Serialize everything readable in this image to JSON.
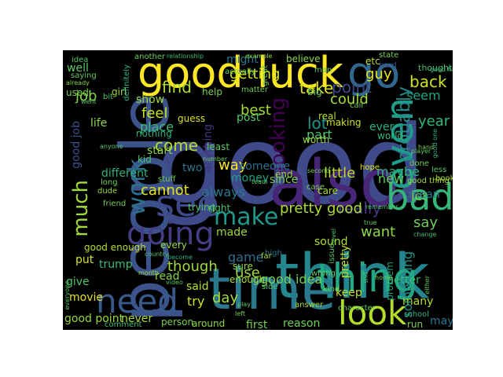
{
  "wordcloud": {
    "words": [
      {
        "text": "good",
        "color": "#3e4a89"
      },
      {
        "text": "people",
        "color": "#3b528b"
      },
      {
        "text": "think",
        "color": "#24868e"
      },
      {
        "text": "time",
        "color": "#2a788e"
      },
      {
        "text": "also",
        "color": "#482677"
      },
      {
        "text": "good luck",
        "color": "#fde725"
      },
      {
        "text": "go",
        "color": "#31688e"
      },
      {
        "text": "even",
        "color": "#1f9e89"
      },
      {
        "text": "bad",
        "color": "#35b779"
      },
      {
        "text": "thing",
        "color": "#22a884"
      },
      {
        "text": "need",
        "color": "#38598c"
      },
      {
        "text": "see",
        "color": "#3e4989"
      },
      {
        "text": "look",
        "color": "#b5de2b"
      },
      {
        "text": "make",
        "color": "#1f988b"
      },
      {
        "text": "going",
        "color": "#433e85"
      },
      {
        "text": "work",
        "color": "#2d708e"
      },
      {
        "text": "much",
        "color": "#a0da39"
      },
      {
        "text": "probably",
        "color": "#238a8d"
      },
      {
        "text": "really",
        "color": "#453781"
      },
      {
        "text": "point",
        "color": "#3e4a89"
      },
      {
        "text": "back",
        "color": "#cde11d"
      },
      {
        "text": "getting",
        "color": "#d8e219"
      },
      {
        "text": "take",
        "color": "#dde318"
      },
      {
        "text": "find",
        "color": "#addc30"
      },
      {
        "text": "looking",
        "color": "#440154"
      },
      {
        "text": "pretty good",
        "color": "#addc30"
      },
      {
        "text": "lot",
        "color": "#1f968b"
      },
      {
        "text": "come",
        "color": "#b5de2b"
      },
      {
        "text": "feel",
        "color": "#c8e020"
      },
      {
        "text": "might",
        "color": "#2a788e"
      },
      {
        "text": "year",
        "color": "#35b779"
      },
      {
        "text": "could",
        "color": "#a5db36"
      },
      {
        "text": "job",
        "color": "#86d549"
      },
      {
        "text": "good job",
        "color": "#3b528b"
      },
      {
        "text": "life",
        "color": "#8bd646"
      },
      {
        "text": "show",
        "color": "#9bd93c"
      },
      {
        "text": "place",
        "color": "#3fbc73"
      },
      {
        "text": "start",
        "color": "#8bd646"
      },
      {
        "text": "cannot",
        "color": "#e5e419"
      },
      {
        "text": "always",
        "color": "#2a788e"
      },
      {
        "text": "way",
        "color": "#fde725"
      },
      {
        "text": "though",
        "color": "#a2da37"
      },
      {
        "text": "made",
        "color": "#9bd93c"
      },
      {
        "text": "want",
        "color": "#8fd744"
      },
      {
        "text": "say",
        "color": "#6ece58"
      },
      {
        "text": "let",
        "color": "#7ad151"
      },
      {
        "text": "seem",
        "color": "#20a386"
      },
      {
        "text": "guy",
        "color": "#e5e419"
      },
      {
        "text": "new",
        "color": "#65cb5e"
      },
      {
        "text": "maybe",
        "color": "#31b57b"
      },
      {
        "text": "little",
        "color": "#b5de2b"
      },
      {
        "text": "someone",
        "color": "#2c728e"
      },
      {
        "text": "money",
        "color": "#1fa188"
      },
      {
        "text": "best",
        "color": "#a5db36"
      },
      {
        "text": "post",
        "color": "#54c568"
      },
      {
        "text": "part",
        "color": "#4ac16d"
      },
      {
        "text": "ever",
        "color": "#2db27d"
      },
      {
        "text": "use",
        "color": "#9dd93b"
      },
      {
        "text": "game",
        "color": "#2e6f8e"
      },
      {
        "text": "good idea",
        "color": "#74d055"
      },
      {
        "text": "day",
        "color": "#a8db34"
      },
      {
        "text": "try",
        "color": "#d0e11c"
      },
      {
        "text": "read",
        "color": "#86d549"
      },
      {
        "text": "said",
        "color": "#b8de29"
      },
      {
        "text": "give",
        "color": "#54c568"
      },
      {
        "text": "movie",
        "color": "#e2e418"
      },
      {
        "text": "trump",
        "color": "#3dbc74"
      },
      {
        "text": "good point",
        "color": "#95d840"
      },
      {
        "text": "never",
        "color": "#a5db36"
      },
      {
        "text": "person",
        "color": "#7ad151"
      },
      {
        "text": "around",
        "color": "#8bd646"
      },
      {
        "text": "first",
        "color": "#74d055"
      },
      {
        "text": "reason",
        "color": "#6ece58"
      },
      {
        "text": "keep",
        "color": "#c0df25"
      },
      {
        "text": "many",
        "color": "#b5de2b"
      },
      {
        "text": "mean",
        "color": "#2a788e"
      },
      {
        "text": "something",
        "color": "#1f968b"
      },
      {
        "text": "problem",
        "color": "#20a486"
      },
      {
        "text": "better",
        "color": "#35b779"
      },
      {
        "text": "run",
        "color": "#7ad151"
      },
      {
        "text": "may",
        "color": "#2a788e"
      },
      {
        "text": "right",
        "color": "#4ac16d"
      },
      {
        "text": "two",
        "color": "#2c728e"
      },
      {
        "text": "different",
        "color": "#2db27d"
      },
      {
        "text": "anything",
        "color": "#46337e"
      },
      {
        "text": "since",
        "color": "#75d054"
      },
      {
        "text": "end",
        "color": "#8fd744"
      },
      {
        "text": "sound",
        "color": "#addc30"
      },
      {
        "text": "sure",
        "color": "#9bd93c"
      },
      {
        "text": "enough",
        "color": "#a2da37"
      },
      {
        "text": "every",
        "color": "#95d840"
      },
      {
        "text": "trying",
        "color": "#54c568"
      },
      {
        "text": "put",
        "color": "#d5e21a"
      },
      {
        "text": "well",
        "color": "#5ec962"
      },
      {
        "text": "used",
        "color": "#7ad151"
      },
      {
        "text": "pretty",
        "color": "#c2df23"
      },
      {
        "text": "nothing",
        "color": "#2db27d"
      },
      {
        "text": "least",
        "color": "#5ec962"
      },
      {
        "text": "guess",
        "color": "#d8e219"
      },
      {
        "text": "good enough",
        "color": "#b5de2b"
      },
      {
        "text": "believe",
        "color": "#8bd646"
      },
      {
        "text": "another",
        "color": "#6ece58"
      },
      {
        "text": "thought",
        "color": "#3fbc73"
      },
      {
        "text": "help",
        "color": "#75d054"
      },
      {
        "text": "actually",
        "color": "#65cb5e"
      },
      {
        "text": "making",
        "color": "#cde11d"
      },
      {
        "text": "real",
        "color": "#c0df25"
      },
      {
        "text": "kid",
        "color": "#4ac16d"
      },
      {
        "text": "girl",
        "color": "#95d840"
      },
      {
        "text": "etc",
        "color": "#b8de29"
      },
      {
        "text": "hard",
        "color": "#3b528b"
      },
      {
        "text": "hope",
        "color": "#dde318"
      },
      {
        "text": "book",
        "color": "#addc30"
      },
      {
        "text": "stuff",
        "color": "#6ece58"
      },
      {
        "text": "care",
        "color": "#addc30"
      },
      {
        "text": "world",
        "color": "#35b779"
      },
      {
        "text": "high",
        "color": "#2c728e"
      },
      {
        "text": "definitely",
        "color": "#2db27d"
      },
      {
        "text": "idea",
        "color": "#54c568"
      },
      {
        "text": "saying",
        "color": "#65cb5e"
      },
      {
        "text": "relationship",
        "color": "#3fbc73"
      },
      {
        "text": "example",
        "color": "#8bd646"
      },
      {
        "text": "great",
        "color": "#5ec962"
      },
      {
        "text": "matter",
        "color": "#74d055"
      },
      {
        "text": "already",
        "color": "#86d549"
      },
      {
        "text": "long",
        "color": "#6ece58"
      },
      {
        "text": "dude",
        "color": "#9bd93c"
      },
      {
        "text": "friend",
        "color": "#75d054"
      },
      {
        "text": "country",
        "color": "#4ac16d"
      },
      {
        "text": "month",
        "color": "#9dd93b"
      },
      {
        "text": "become",
        "color": "#2db27d"
      },
      {
        "text": "video",
        "color": "#5ec962"
      },
      {
        "text": "left",
        "color": "#7ad151"
      },
      {
        "text": "answer",
        "color": "#a5db36"
      },
      {
        "text": "character",
        "color": "#65cb5e"
      },
      {
        "text": "comment",
        "color": "#3fbc73"
      },
      {
        "text": "anyone",
        "color": "#54c568"
      },
      {
        "text": "second",
        "color": "#6ece58"
      },
      {
        "text": "remember",
        "color": "#4ac16d"
      },
      {
        "text": "school",
        "color": "#2db27d"
      },
      {
        "text": "player",
        "color": "#65cb5e"
      },
      {
        "text": "done",
        "color": "#75d054"
      },
      {
        "text": "state",
        "color": "#7ad151"
      },
      {
        "text": "man",
        "color": "#5ec962"
      },
      {
        "text": "worth",
        "color": "#9bd93c"
      },
      {
        "text": "number",
        "color": "#6ece58"
      },
      {
        "text": "side",
        "color": "#4ac16d"
      },
      {
        "text": "far",
        "color": "#a2da37"
      },
      {
        "text": "issue",
        "color": "#54c568"
      },
      {
        "text": "wrong",
        "color": "#65cb5e"
      },
      {
        "text": "case",
        "color": "#7ad151"
      },
      {
        "text": "kind",
        "color": "#5ec962"
      },
      {
        "text": "level",
        "color": "#4ac16d"
      },
      {
        "text": "hand",
        "color": "#6ece58"
      },
      {
        "text": "less",
        "color": "#54c568"
      },
      {
        "text": "home",
        "color": "#75d054"
      },
      {
        "text": "change",
        "color": "#3fbc73"
      },
      {
        "text": "true",
        "color": "#65cb5e"
      },
      {
        "text": "call",
        "color": "#6ece58"
      },
      {
        "text": "went",
        "color": "#54c568"
      },
      {
        "text": "bit",
        "color": "#4ac16d"
      },
      {
        "text": "big",
        "color": "#65cb5e"
      },
      {
        "text": "good thing",
        "color": "#a5db36"
      },
      {
        "text": "good one",
        "color": "#2db27d"
      },
      {
        "text": "good time",
        "color": "#3fbc73"
      },
      {
        "text": "team",
        "color": "#5ec962"
      },
      {
        "text": "everyone",
        "color": "#54c568"
      },
      {
        "text": "either",
        "color": "#65cb5e"
      },
      {
        "text": "shit",
        "color": "#4ac16d"
      },
      {
        "text": "play",
        "color": "#5ec962"
      }
    ]
  }
}
